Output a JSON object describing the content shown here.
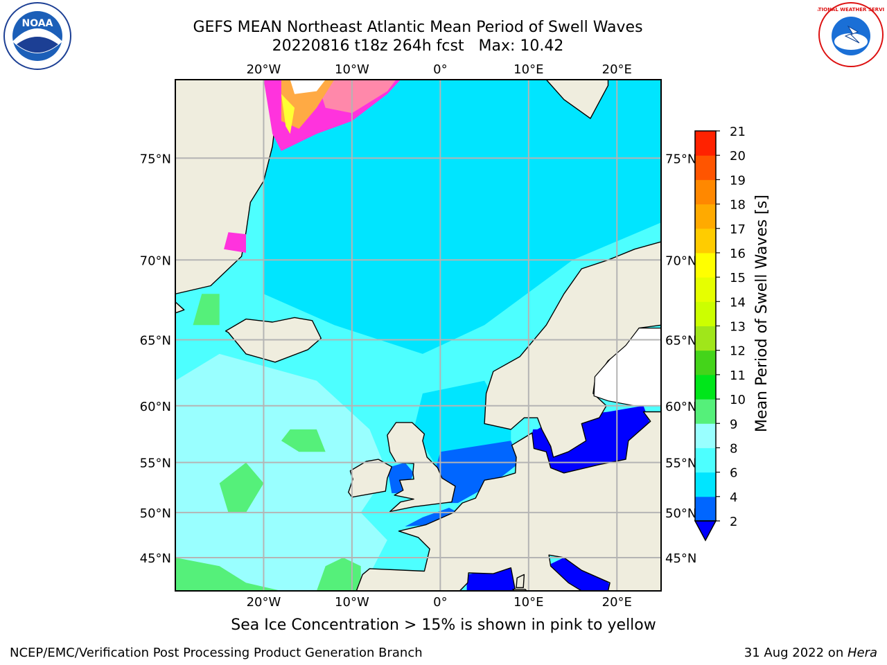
{
  "title": {
    "line1": "GEFS MEAN Northeast Atlantic Mean Period of Swell Waves",
    "line2": "20220816 t18z 264h fcst   Max: 10.42"
  },
  "caption": "Sea Ice Concentration > 15% is shown in pink to yellow",
  "footer": {
    "left": "NCEP/EMC/Verification Post Processing Product Generation Branch",
    "date": "31 Aug 2022 on ",
    "system": "Hera"
  },
  "logos": {
    "noaa": {
      "text": "NOAA",
      "icon": "noaa-logo"
    },
    "nws": {
      "text": "NATIONAL WEATHER SERVICE",
      "icon": "nws-logo"
    }
  },
  "map": {
    "lon_range": [
      -30,
      25
    ],
    "lat_range": [
      41,
      78
    ],
    "lon_ticks": [
      {
        "value": -20,
        "label": "20°W"
      },
      {
        "value": -10,
        "label": "10°W"
      },
      {
        "value": 0,
        "label": "0°"
      },
      {
        "value": 10,
        "label": "10°E"
      },
      {
        "value": 20,
        "label": "20°E"
      }
    ],
    "lat_ticks": [
      {
        "value": 45,
        "label": "45°N"
      },
      {
        "value": 50,
        "label": "50°N"
      },
      {
        "value": 55,
        "label": "55°N"
      },
      {
        "value": 60,
        "label": "60°N"
      },
      {
        "value": 65,
        "label": "65°N"
      },
      {
        "value": 70,
        "label": "70°N"
      },
      {
        "value": 75,
        "label": "75°N"
      }
    ],
    "grid": true,
    "colors": {
      "land": "#efedde",
      "ocean_base": "#4dffff",
      "grid": "#b4b4b4",
      "ice_white": "#ffffff"
    }
  },
  "colorbar": {
    "label": "Mean Period of Swell Waves [s]",
    "ticks": [
      "2",
      "4",
      "6",
      "8",
      "9",
      "10",
      "11",
      "12",
      "13",
      "14",
      "15",
      "16",
      "17",
      "18",
      "19",
      "20",
      "21"
    ],
    "extend": "min",
    "colors": [
      "#0066ff",
      "#00e5ff",
      "#4dffff",
      "#99ffff",
      "#55f07a",
      "#00e61a",
      "#44d41a",
      "#a0e61a",
      "#ccff00",
      "#e6ff00",
      "#ffff00",
      "#ffcc00",
      "#ffaa00",
      "#ff8800",
      "#ff5500",
      "#ff2200"
    ],
    "extend_color": "#0000ff"
  }
}
